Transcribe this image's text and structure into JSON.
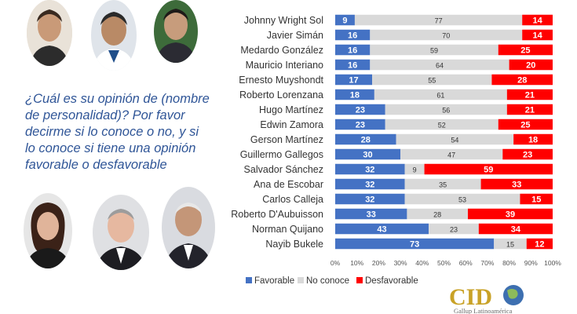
{
  "question": "¿Cuál es su opinión de (nombre de personalidad)? Por favor decirme si lo conoce o no, y si lo conoce si tiene una opinión favorable o desfavorable",
  "logo": {
    "name": "CID",
    "tagline": "Gallup Latinoamérica"
  },
  "colors": {
    "favorable": "#4472c4",
    "no_conoce": "#d9d9d9",
    "desfavorable": "#ff0000",
    "question_text": "#2f5597"
  },
  "chart_data": {
    "type": "bar",
    "orientation": "horizontal-stacked-percent",
    "categories": [
      "Johnny Wright Sol",
      "Javier Simán",
      "Medardo González",
      "Mauricio Interiano",
      "Ernesto Muyshondt",
      "Roberto Lorenzana",
      "Hugo Martínez",
      "Edwin Zamora",
      "Gerson Martínez",
      "Guillermo Gallegos",
      "Salvador Sánchez",
      "Ana de Escobar",
      "Carlos Calleja",
      "Roberto D'Aubuisson",
      "Norman Quijano",
      "Nayib Bukele"
    ],
    "series": [
      {
        "name": "Favorable",
        "values": [
          9,
          16,
          16,
          16,
          17,
          18,
          23,
          23,
          28,
          30,
          32,
          32,
          32,
          33,
          43,
          73
        ]
      },
      {
        "name": "No conoce",
        "values": [
          77,
          70,
          59,
          64,
          55,
          61,
          56,
          52,
          54,
          47,
          9,
          35,
          53,
          28,
          23,
          15
        ]
      },
      {
        "name": "Desfavorable",
        "values": [
          14,
          14,
          25,
          20,
          28,
          21,
          21,
          25,
          18,
          23,
          59,
          33,
          15,
          39,
          34,
          12
        ]
      }
    ],
    "x_ticks": [
      "0%",
      "10%",
      "20%",
      "30%",
      "40%",
      "50%",
      "60%",
      "70%",
      "80%",
      "90%",
      "100%"
    ],
    "xlim": [
      0,
      100
    ],
    "legend_position": "bottom",
    "grid": false
  }
}
